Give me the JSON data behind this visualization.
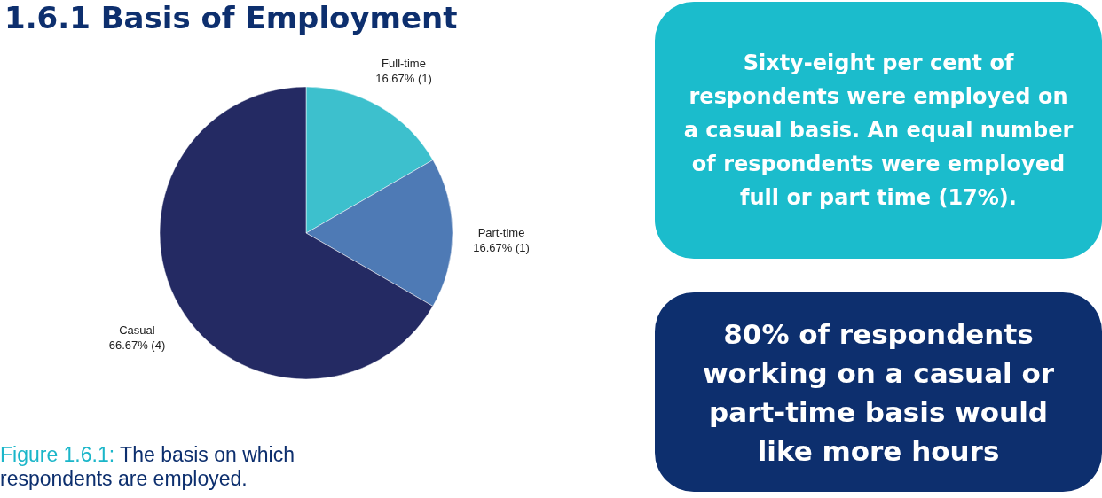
{
  "chart_data": {
    "type": "pie",
    "title": "1.6.1 Basis of Employment",
    "categories": [
      "Full-time",
      "Part-time",
      "Casual"
    ],
    "values": [
      16.67,
      16.67,
      66.67
    ],
    "value_labels": [
      "16.67% (1)",
      "16.67% (1)",
      "66.67% (4)"
    ],
    "colors": [
      "#3dc0cd",
      "#4e7ab5",
      "#242a63"
    ],
    "annotations": [
      "Figure 1.6.1: The basis on which respondents are employed.",
      "Sixty-eight per cent of respondents were employed on a casual basis. An equal number of respondents were employed full or part time (17%).",
      "80% of respondents working on a casual or part-time basis would like more hours"
    ]
  }
}
